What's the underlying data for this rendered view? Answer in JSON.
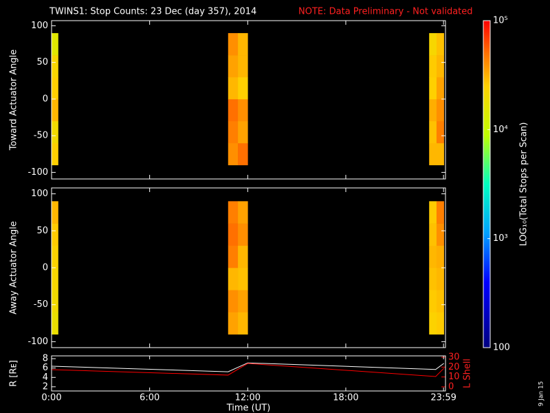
{
  "chart_data": [
    {
      "type": "heatmap",
      "title": "TWINS1: Stop Counts: 23 Dec (day 357), 2014",
      "note": "NOTE: Data Preliminary - Not validated",
      "ylabel": "Toward Actuator Angle",
      "xlim": [
        0,
        24.1
      ],
      "ylim": [
        -109,
        107
      ],
      "yticks": [
        -100,
        -50,
        0,
        50,
        100
      ],
      "x_bins": [
        0,
        0.4,
        10.8,
        11.4,
        12.0,
        23.1,
        23.55,
        24
      ],
      "y_bins": [
        -90,
        -60,
        -30,
        0,
        30,
        60,
        90
      ],
      "values": [
        [
          25000,
          null,
          40000,
          50000,
          null,
          30000,
          30000
        ],
        [
          20000,
          null,
          45000,
          35000,
          null,
          28000,
          45000
        ],
        [
          30000,
          null,
          50000,
          40000,
          null,
          32000,
          40000
        ],
        [
          25000,
          null,
          30000,
          25000,
          null,
          25000,
          35000
        ],
        [
          22000,
          null,
          35000,
          30000,
          null,
          26000,
          30000
        ],
        [
          15000,
          null,
          40000,
          30000,
          null,
          22000,
          28000
        ]
      ],
      "colorbar": {
        "label": "LOG₁₀(Total Stops per Scan)",
        "lim": [
          100,
          100000
        ],
        "log": true,
        "ticks": [
          100,
          {
            "value": 1000,
            "label": "10³"
          },
          {
            "value": 10000,
            "label": "10⁴"
          },
          {
            "value": 100000,
            "label": "10⁵"
          }
        ]
      }
    },
    {
      "type": "heatmap",
      "ylabel": "Away Actuator Angle",
      "xlim": [
        0,
        24.1
      ],
      "ylim": [
        -108,
        108
      ],
      "yticks": [
        -100,
        -50,
        0,
        50,
        100
      ],
      "x_bins": [
        0,
        0.4,
        10.8,
        11.4,
        12.0,
        23.1,
        23.55,
        24
      ],
      "y_bins": [
        -90,
        -60,
        -30,
        0,
        30,
        60,
        90
      ],
      "values": [
        [
          18000,
          null,
          35000,
          30000,
          null,
          24000,
          26000
        ],
        [
          20000,
          null,
          40000,
          35000,
          null,
          26000,
          28000
        ],
        [
          22000,
          null,
          30000,
          28000,
          null,
          28000,
          30000
        ],
        [
          24000,
          null,
          45000,
          30000,
          null,
          30000,
          32000
        ],
        [
          26000,
          null,
          50000,
          40000,
          null,
          28000,
          40000
        ],
        [
          30000,
          null,
          45000,
          35000,
          null,
          26000,
          45000
        ]
      ]
    },
    {
      "type": "line",
      "ylabel": "R [Rᴇ]",
      "y2label": "L Shell",
      "xlabel": "Time (UT)",
      "xlim": [
        0,
        24.1
      ],
      "xticks": [
        {
          "value": 0,
          "label": "0:00"
        },
        {
          "value": 6,
          "label": "6:00"
        },
        {
          "value": 12,
          "label": "12:00"
        },
        {
          "value": 18,
          "label": "18:00"
        },
        {
          "value": 23.98,
          "label": "23:59"
        }
      ],
      "ylim": [
        1.1,
        8.6
      ],
      "yticks": [
        2,
        4,
        6,
        8
      ],
      "y2lim": [
        -4.2,
        31.4
      ],
      "y2ticks": [
        0,
        10,
        20,
        30
      ],
      "x": [
        0,
        10.8,
        12,
        23.5,
        24
      ],
      "series": [
        {
          "color": "#ffffff",
          "values": [
            6.4,
            5.2,
            7.1,
            5.7,
            7.0
          ]
        },
        {
          "color": "#ff0000",
          "axis": "y2",
          "values": [
            17.4,
            11.9,
            23.7,
            10.5,
            18.8
          ]
        }
      ]
    }
  ],
  "date_stamp": "9 Jan 15"
}
